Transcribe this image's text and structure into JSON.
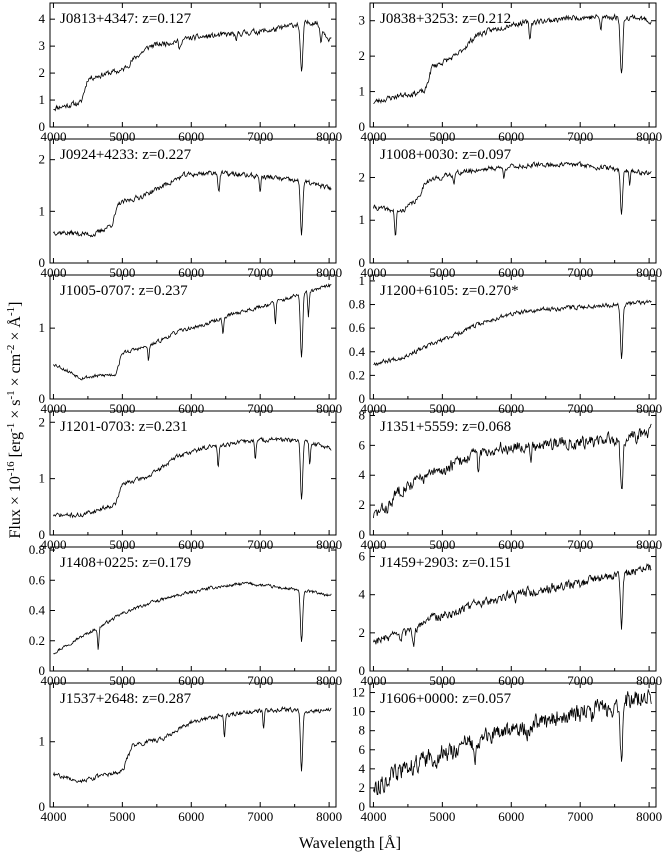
{
  "chart_data": {
    "type": "line",
    "layout": "6 rows x 2 columns of panels",
    "xlabel": "Wavelength [Å]",
    "ylabel_parts": {
      "lead": "Flux × 10",
      "exp1": "-16",
      "mid1": " [erg",
      "exp2": "-1",
      "mid2": " × s",
      "exp3": "-1",
      "mid3": " × cm",
      "exp4": "-2",
      "mid4": " × Å",
      "exp5": "-1",
      "tail": "]"
    },
    "xlim": [
      3950,
      8100
    ],
    "xticks": [
      4000,
      5000,
      6000,
      7000,
      8000
    ],
    "grid": false,
    "legend": "none",
    "panels": [
      {
        "title": "J0813+4347: z=0.127",
        "ylim": [
          0,
          4.6
        ],
        "yticks": [
          0,
          1,
          2,
          3,
          4
        ],
        "features": {
          "break_at": 4450,
          "break_size": 0.5,
          "seed": 11,
          "noise": 0.09,
          "absorptions": [
            [
              5830,
              0.35,
              14
            ],
            [
              6650,
              0.35,
              12
            ],
            [
              7600,
              1.8,
              18
            ],
            [
              7880,
              0.5,
              10
            ]
          ]
        },
        "trend": [
          [
            4000,
            0.7
          ],
          [
            4400,
            0.9
          ],
          [
            4500,
            1.8
          ],
          [
            4800,
            2.0
          ],
          [
            5000,
            2.1
          ],
          [
            5200,
            2.6
          ],
          [
            5400,
            3.0
          ],
          [
            5600,
            3.1
          ],
          [
            5800,
            3.2
          ],
          [
            6000,
            3.3
          ],
          [
            6400,
            3.4
          ],
          [
            6800,
            3.5
          ],
          [
            7200,
            3.6
          ],
          [
            7500,
            3.8
          ],
          [
            7800,
            3.9
          ],
          [
            8000,
            3.3
          ]
        ]
      },
      {
        "title": "J0838+3253: z=0.212",
        "ylim": [
          0,
          3.5
        ],
        "yticks": [
          0,
          1,
          2,
          3
        ],
        "features": {
          "break_at": 4800,
          "break_size": 0.6,
          "seed": 23,
          "noise": 0.09,
          "absorptions": [
            [
              6270,
              0.45,
              12
            ],
            [
              7600,
              1.6,
              18
            ],
            [
              7300,
              0.4,
              10
            ]
          ]
        },
        "trend": [
          [
            4000,
            0.7
          ],
          [
            4400,
            0.9
          ],
          [
            4750,
            1.0
          ],
          [
            4850,
            1.7
          ],
          [
            5200,
            2.0
          ],
          [
            5500,
            2.6
          ],
          [
            6000,
            2.9
          ],
          [
            6500,
            3.0
          ],
          [
            7000,
            3.1
          ],
          [
            7500,
            3.1
          ],
          [
            7800,
            3.1
          ],
          [
            8000,
            3.0
          ]
        ]
      },
      {
        "title": "J0924+4233: z=0.227",
        "ylim": [
          0,
          2.4
        ],
        "yticks": [
          0,
          1,
          2
        ],
        "features": {
          "break_at": 4900,
          "break_size": 0.35,
          "seed": 37,
          "noise": 0.08,
          "absorptions": [
            [
              6400,
              0.35,
              12
            ],
            [
              7000,
              0.3,
              10
            ],
            [
              7600,
              1.0,
              16
            ]
          ]
        },
        "trend": [
          [
            4000,
            0.6
          ],
          [
            4600,
            0.55
          ],
          [
            4850,
            0.75
          ],
          [
            4950,
            1.15
          ],
          [
            5300,
            1.3
          ],
          [
            5600,
            1.5
          ],
          [
            5900,
            1.7
          ],
          [
            6300,
            1.75
          ],
          [
            6800,
            1.7
          ],
          [
            7200,
            1.65
          ],
          [
            7700,
            1.55
          ],
          [
            8000,
            1.45
          ]
        ]
      },
      {
        "title": "J1008+0030: z=0.097",
        "ylim": [
          0,
          2.9
        ],
        "yticks": [
          0,
          1,
          2
        ],
        "features": {
          "break_at": 4700,
          "break_size": 0.4,
          "seed": 41,
          "noise": 0.08,
          "absorptions": [
            [
              4320,
              0.6,
              12
            ],
            [
              5170,
              0.2,
              10
            ],
            [
              5890,
              0.25,
              10
            ],
            [
              7600,
              1.0,
              16
            ],
            [
              7720,
              0.3,
              10
            ]
          ]
        },
        "trend": [
          [
            4000,
            1.3
          ],
          [
            4400,
            1.2
          ],
          [
            4650,
            1.5
          ],
          [
            4750,
            1.9
          ],
          [
            5200,
            2.1
          ],
          [
            5600,
            2.2
          ],
          [
            6000,
            2.25
          ],
          [
            6500,
            2.3
          ],
          [
            7000,
            2.3
          ],
          [
            7500,
            2.2
          ],
          [
            8000,
            2.1
          ]
        ]
      },
      {
        "title": "J1005-0707: z=0.237",
        "ylim": [
          0,
          1.75
        ],
        "yticks": [
          0,
          1
        ],
        "features": {
          "break_at": 4950,
          "break_size": 0.3,
          "seed": 53,
          "noise": 0.06,
          "absorptions": [
            [
              5380,
              0.2,
              10
            ],
            [
              6460,
              0.25,
              10
            ],
            [
              7220,
              0.3,
              10
            ],
            [
              7600,
              0.9,
              16
            ],
            [
              7700,
              0.35,
              10
            ]
          ]
        },
        "trend": [
          [
            4000,
            0.5
          ],
          [
            4400,
            0.3
          ],
          [
            4900,
            0.35
          ],
          [
            5000,
            0.65
          ],
          [
            5400,
            0.75
          ],
          [
            5800,
            0.95
          ],
          [
            6200,
            1.05
          ],
          [
            6600,
            1.2
          ],
          [
            7000,
            1.3
          ],
          [
            7500,
            1.45
          ],
          [
            8000,
            1.6
          ]
        ]
      },
      {
        "title": "J1200+6105: z=0.270*",
        "ylim": [
          0,
          1.05
        ],
        "yticks": [
          0,
          0.2,
          0.4,
          0.6,
          0.8,
          1
        ],
        "features": {
          "break_at": 0,
          "break_size": 0,
          "seed": 67,
          "noise": 0.07,
          "absorptions": [
            [
              7600,
              0.45,
              16
            ]
          ]
        },
        "trend": [
          [
            4000,
            0.3
          ],
          [
            4400,
            0.35
          ],
          [
            4800,
            0.45
          ],
          [
            5200,
            0.55
          ],
          [
            5600,
            0.65
          ],
          [
            6000,
            0.72
          ],
          [
            6500,
            0.76
          ],
          [
            7000,
            0.78
          ],
          [
            7500,
            0.8
          ],
          [
            8000,
            0.82
          ]
        ]
      },
      {
        "title": "J1201-0703: z=0.231",
        "ylim": [
          0,
          2.2
        ],
        "yticks": [
          0,
          1,
          2
        ],
        "features": {
          "break_at": 4950,
          "break_size": 0.35,
          "seed": 71,
          "noise": 0.07,
          "absorptions": [
            [
              6390,
              0.35,
              10
            ],
            [
              6930,
              0.3,
              10
            ],
            [
              7600,
              1.0,
              16
            ],
            [
              7720,
              0.4,
              10
            ]
          ]
        },
        "trend": [
          [
            4000,
            0.35
          ],
          [
            4400,
            0.35
          ],
          [
            4900,
            0.55
          ],
          [
            5000,
            0.9
          ],
          [
            5400,
            1.05
          ],
          [
            5800,
            1.4
          ],
          [
            6200,
            1.55
          ],
          [
            6700,
            1.65
          ],
          [
            7200,
            1.7
          ],
          [
            7700,
            1.65
          ],
          [
            8000,
            1.55
          ]
        ]
      },
      {
        "title": "J1351+5559: z=0.068",
        "ylim": [
          0,
          8.3
        ],
        "yticks": [
          0,
          2,
          4,
          6,
          8
        ],
        "features": {
          "break_at": 4300,
          "break_size": 1.0,
          "seed": 83,
          "noise": 0.2,
          "absorptions": [
            [
              5520,
              1.0,
              12
            ],
            [
              6280,
              1.0,
              12
            ],
            [
              7600,
              3.5,
              18
            ]
          ]
        },
        "trend": [
          [
            4000,
            1.3
          ],
          [
            4250,
            2.0
          ],
          [
            4350,
            3.0
          ],
          [
            4700,
            3.8
          ],
          [
            5000,
            4.3
          ],
          [
            5400,
            5.3
          ],
          [
            5800,
            5.8
          ],
          [
            6200,
            6.0
          ],
          [
            6800,
            6.2
          ],
          [
            7300,
            6.3
          ],
          [
            7800,
            6.6
          ],
          [
            8000,
            6.9
          ]
        ]
      },
      {
        "title": "J1408+0225: z=0.179",
        "ylim": [
          0,
          0.82
        ],
        "yticks": [
          0,
          0.2,
          0.4,
          0.6,
          0.8
        ],
        "features": {
          "break_at": 0,
          "break_size": 0,
          "seed": 97,
          "noise": 0.05,
          "absorptions": [
            [
              7600,
              0.35,
              16
            ],
            [
              4650,
              0.15,
              10
            ]
          ]
        },
        "trend": [
          [
            4000,
            0.12
          ],
          [
            4300,
            0.2
          ],
          [
            4700,
            0.3
          ],
          [
            5000,
            0.38
          ],
          [
            5400,
            0.45
          ],
          [
            5800,
            0.5
          ],
          [
            6300,
            0.55
          ],
          [
            6800,
            0.58
          ],
          [
            7300,
            0.55
          ],
          [
            7800,
            0.52
          ],
          [
            8000,
            0.5
          ]
        ]
      },
      {
        "title": "J1459+2903: z=0.151",
        "ylim": [
          0,
          6.5
        ],
        "yticks": [
          0,
          2,
          4,
          6
        ],
        "features": {
          "break_at": 4650,
          "break_size": 0.6,
          "seed": 103,
          "noise": 0.15,
          "absorptions": [
            [
              4580,
              0.8,
              10
            ],
            [
              6060,
              0.5,
              10
            ],
            [
              7600,
              2.8,
              16
            ]
          ]
        },
        "trend": [
          [
            4000,
            1.6
          ],
          [
            4400,
            1.8
          ],
          [
            4650,
            2.2
          ],
          [
            4750,
            2.7
          ],
          [
            5200,
            3.1
          ],
          [
            5600,
            3.6
          ],
          [
            6000,
            4.0
          ],
          [
            6500,
            4.3
          ],
          [
            7000,
            4.6
          ],
          [
            7500,
            5.0
          ],
          [
            8000,
            5.4
          ]
        ]
      },
      {
        "title": "J1537+2648: z=0.287",
        "ylim": [
          0,
          1.9
        ],
        "yticks": [
          0,
          1
        ],
        "features": {
          "break_at": 5100,
          "break_size": 0.35,
          "seed": 107,
          "noise": 0.07,
          "absorptions": [
            [
              6480,
              0.35,
              10
            ],
            [
              7600,
              0.9,
              16
            ],
            [
              7050,
              0.3,
              10
            ]
          ]
        },
        "trend": [
          [
            4000,
            0.5
          ],
          [
            4400,
            0.4
          ],
          [
            5000,
            0.55
          ],
          [
            5150,
            0.95
          ],
          [
            5600,
            1.05
          ],
          [
            6000,
            1.3
          ],
          [
            6400,
            1.4
          ],
          [
            6800,
            1.45
          ],
          [
            7300,
            1.5
          ],
          [
            7700,
            1.45
          ],
          [
            8000,
            1.5
          ]
        ]
      },
      {
        "title": "J1606+0000: z=0.057",
        "ylim": [
          0,
          13
        ],
        "yticks": [
          0,
          2,
          4,
          6,
          8,
          10,
          12
        ],
        "features": {
          "break_at": 0,
          "break_size": 0,
          "seed": 113,
          "noise": 0.3,
          "absorptions": [
            [
              5480,
              1.4,
              12
            ],
            [
              6230,
              1.0,
              10
            ],
            [
              7600,
              6.0,
              16
            ]
          ]
        },
        "trend": [
          [
            4000,
            2.0
          ],
          [
            4200,
            3.0
          ],
          [
            4600,
            4.5
          ],
          [
            5000,
            5.5
          ],
          [
            5500,
            7.0
          ],
          [
            6000,
            8.0
          ],
          [
            6500,
            9.0
          ],
          [
            7000,
            9.8
          ],
          [
            7500,
            10.5
          ],
          [
            7800,
            11.3
          ],
          [
            8000,
            11.5
          ]
        ]
      }
    ]
  }
}
